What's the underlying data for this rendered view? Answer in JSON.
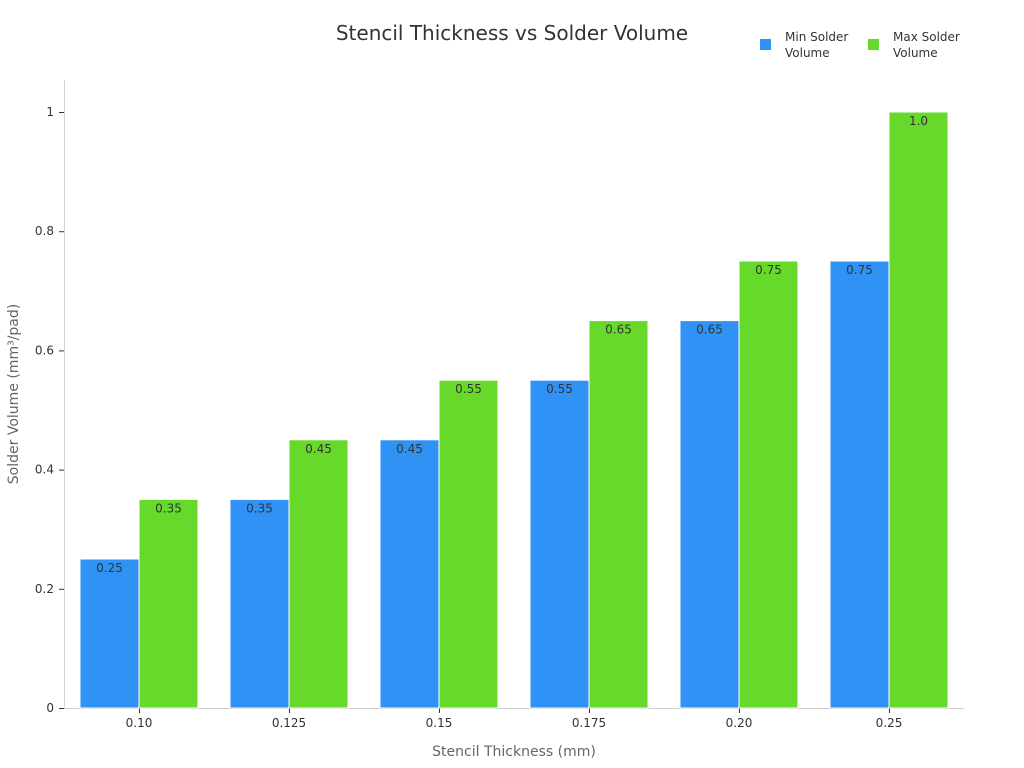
{
  "chart_data": {
    "type": "bar",
    "title": "Stencil Thickness vs Solder Volume",
    "xlabel": "Stencil Thickness (mm)",
    "ylabel": "Solder Volume (mm³/pad)",
    "categories": [
      "0.10",
      "0.125",
      "0.15",
      "0.175",
      "0.20",
      "0.25"
    ],
    "series": [
      {
        "name": "Min Solder Volume",
        "legend_lines": [
          "Min Solder",
          "Volume"
        ],
        "color": "#3092f5",
        "values": [
          0.25,
          0.35,
          0.45,
          0.55,
          0.65,
          0.75
        ],
        "value_labels": [
          "0.25",
          "0.35",
          "0.45",
          "0.55",
          "0.65",
          "0.75"
        ]
      },
      {
        "name": "Max Solder Volume",
        "legend_lines": [
          "Max Solder",
          "Volume"
        ],
        "color": "#66d92a",
        "values": [
          0.35,
          0.45,
          0.55,
          0.65,
          0.75,
          1.0
        ],
        "value_labels": [
          "0.35",
          "0.45",
          "0.55",
          "0.65",
          "0.75",
          "1.0"
        ]
      }
    ],
    "ylim": [
      0,
      1.05
    ],
    "yticks": [
      0,
      0.2,
      0.4,
      0.6,
      0.8,
      1
    ],
    "ytick_labels": [
      "0",
      "0.2",
      "0.4",
      "0.6",
      "0.8",
      "1"
    ],
    "grid": false,
    "legend_position": "top-right"
  }
}
